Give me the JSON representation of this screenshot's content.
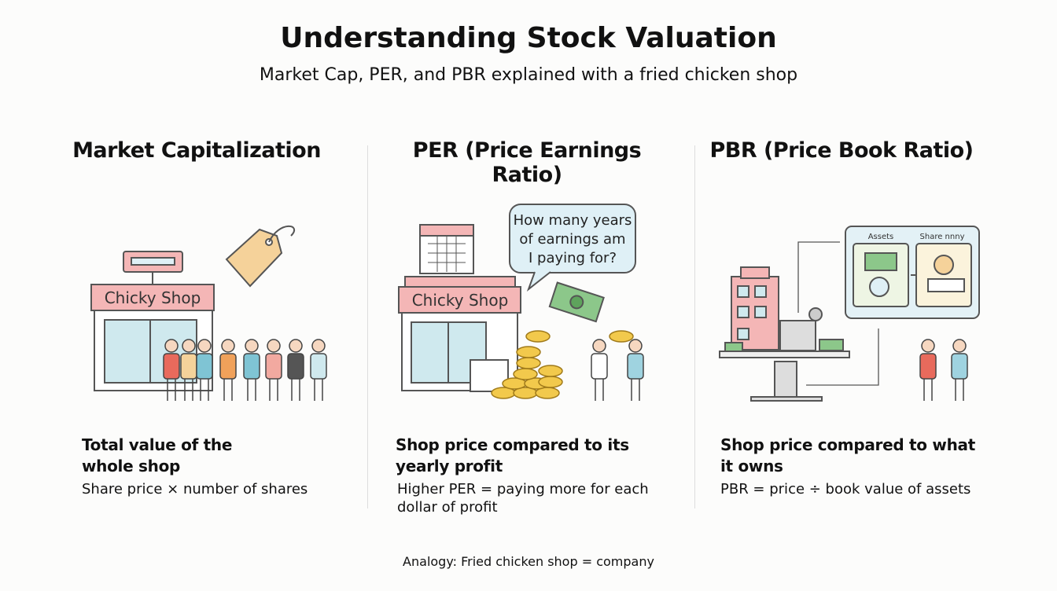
{
  "header": {
    "title": "Understanding Stock Valuation",
    "subtitle": "Market Cap, PER, and PBR explained with a fried chicken shop"
  },
  "columns": [
    {
      "heading": "Market Capitalization",
      "illustration": {
        "shop_sign": "Chicky Shop"
      },
      "description": "Total value of the whole shop",
      "formula": "Share price × number of shares"
    },
    {
      "heading": "PER (Price Earnings Ratio)",
      "illustration": {
        "shop_sign": "Chicky Shop",
        "speech_bubble": "How many years of earnings am I paying for?"
      },
      "description": "Shop price compared to its yearly profit",
      "formula": "Higher PER = paying more for each dollar of profit"
    },
    {
      "heading": "PBR (Price Book Ratio)",
      "illustration": {
        "panel_left": "Assets",
        "panel_right": "Share nnny"
      },
      "description": "Shop price compared to what it owns",
      "formula": "PBR = price ÷ book value of assets"
    }
  ],
  "footer": "Analogy: Fried chicken shop = company"
}
